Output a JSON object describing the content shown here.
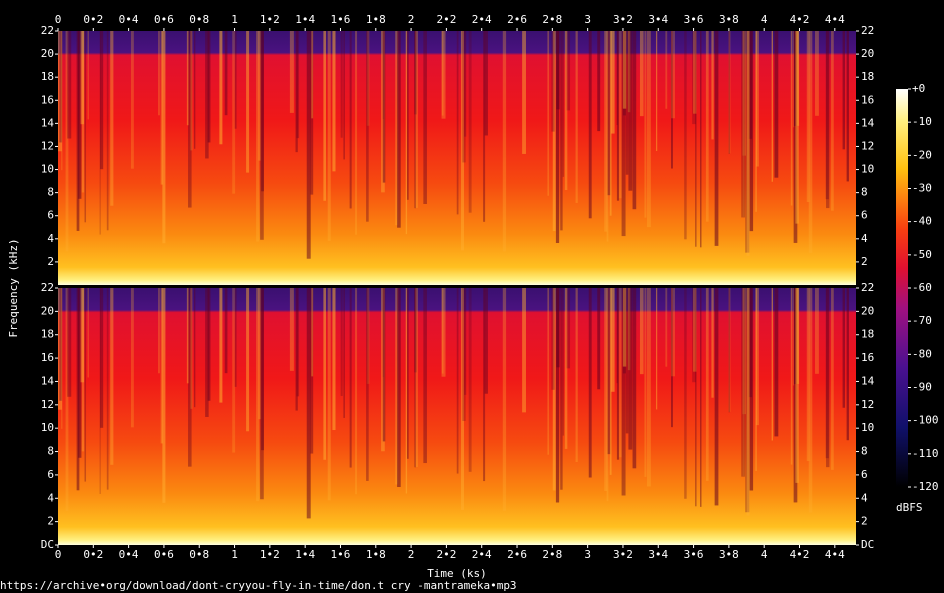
{
  "chart_data": [
    {
      "type": "spectrogram",
      "ylabel": "Frequency (kHz)",
      "xlim": [
        0,
        4.52
      ],
      "ylim": [
        0,
        22
      ],
      "xticks": [
        0,
        {
          "value": 0.2,
          "label": "0•2"
        },
        {
          "value": 0.4,
          "label": "0•4"
        },
        {
          "value": 0.6,
          "label": "0•6"
        },
        {
          "value": 0.8,
          "label": "0•8"
        },
        1,
        {
          "value": 1.2,
          "label": "1•2"
        },
        {
          "value": 1.4,
          "label": "1•4"
        },
        {
          "value": 1.6,
          "label": "1•6"
        },
        {
          "value": 1.8,
          "label": "1•8"
        },
        2,
        {
          "value": 2.2,
          "label": "2•2"
        },
        {
          "value": 2.4,
          "label": "2•4"
        },
        {
          "value": 2.6,
          "label": "2•6"
        },
        {
          "value": 2.8,
          "label": "2•8"
        },
        3,
        {
          "value": 3.2,
          "label": "3•2"
        },
        {
          "value": 3.4,
          "label": "3•4"
        },
        {
          "value": 3.6,
          "label": "3•6"
        },
        {
          "value": 3.8,
          "label": "3•8"
        },
        4,
        {
          "value": 4.2,
          "label": "4•2"
        },
        {
          "value": 4.4,
          "label": "4•4"
        }
      ],
      "yticks": [
        2,
        4,
        6,
        8,
        10,
        12,
        14,
        16,
        18,
        20,
        22
      ]
    },
    {
      "type": "spectrogram",
      "xlabel": "Time (ks)",
      "xlim": [
        0,
        4.52
      ],
      "ylim": [
        0,
        22
      ],
      "xticks": [
        0,
        {
          "value": 0.2,
          "label": "0•2"
        },
        {
          "value": 0.4,
          "label": "0•4"
        },
        {
          "value": 0.6,
          "label": "0•6"
        },
        {
          "value": 0.8,
          "label": "0•8"
        },
        1,
        {
          "value": 1.2,
          "label": "1•2"
        },
        {
          "value": 1.4,
          "label": "1•4"
        },
        {
          "value": 1.6,
          "label": "1•6"
        },
        {
          "value": 1.8,
          "label": "1•8"
        },
        2,
        {
          "value": 2.2,
          "label": "2•2"
        },
        {
          "value": 2.4,
          "label": "2•4"
        },
        {
          "value": 2.6,
          "label": "2•6"
        },
        {
          "value": 2.8,
          "label": "2•8"
        },
        3,
        {
          "value": 3.2,
          "label": "3•2"
        },
        {
          "value": 3.4,
          "label": "3•4"
        },
        {
          "value": 3.6,
          "label": "3•6"
        },
        {
          "value": 3.8,
          "label": "3•8"
        },
        4,
        {
          "value": 4.2,
          "label": "4•2"
        },
        {
          "value": 4.4,
          "label": "4•4"
        }
      ],
      "yticks": [
        {
          "value": 0,
          "label": "DC"
        },
        2,
        4,
        6,
        8,
        10,
        12,
        14,
        16,
        18,
        20,
        22
      ]
    }
  ],
  "colorbar": {
    "label": "dBFS",
    "lim": [
      -120,
      0
    ],
    "ticks": [
      {
        "value": 0,
        "label": "+0"
      },
      -10,
      -20,
      -30,
      -40,
      -50,
      -60,
      -70,
      -80,
      -90,
      -100,
      -110,
      -120
    ]
  },
  "source": "https://archive•org/download/dont-cryyou-fly-in-time/don.t cry -mantrameka•mp3"
}
